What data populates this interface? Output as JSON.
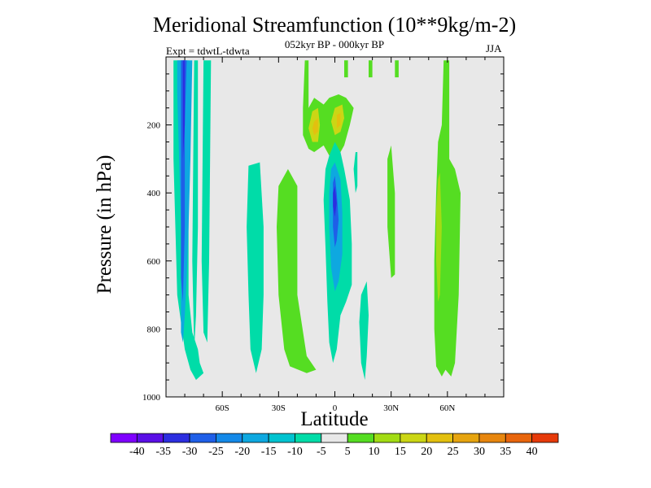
{
  "chart_data": {
    "type": "heatmap",
    "title": "Meridional Streamfunction (10**9kg/m-2)",
    "subtitle": "052kyr BP - 000kyr BP",
    "experiment_label": "Expt = tdwtL-tdwta",
    "season": "JJA",
    "xlabel": "Latitude",
    "ylabel": "Pressure (in hPa)",
    "xlim": [
      -90,
      90
    ],
    "ylim": [
      1000,
      0
    ],
    "x_ticks": [
      -60,
      -30,
      0,
      30,
      60
    ],
    "x_tick_labels": [
      "60S",
      "30S",
      "0",
      "30N",
      "60N"
    ],
    "y_ticks": [
      200,
      400,
      600,
      800,
      1000
    ],
    "y_tick_labels": [
      "200",
      "400",
      "600",
      "800",
      "1000"
    ],
    "colorbar_levels": [
      -40,
      -35,
      -30,
      -25,
      -20,
      -15,
      -10,
      -5,
      5,
      10,
      15,
      20,
      25,
      30,
      35,
      40
    ],
    "colorbar_labels": [
      "-40",
      "-35",
      "-30",
      "-25",
      "-20",
      "-15",
      "-10",
      "-5",
      "5",
      "10",
      "15",
      "20",
      "25",
      "30",
      "35",
      "40"
    ],
    "colorbar_colors": [
      "#7f00ff",
      "#5a0fe6",
      "#2c2ee0",
      "#1f5fe8",
      "#1489e8",
      "#0ea8e0",
      "#00c3d0",
      "#00dca8",
      "#e8e8e8",
      "#55dd22",
      "#a2dc14",
      "#cbd615",
      "#e3c00f",
      "#e6a40f",
      "#e7860e",
      "#e8650c",
      "#e63a0a"
    ],
    "background_color": "#e8e8e8",
    "contours": [
      {
        "level": -10,
        "color": "#00dca8",
        "points": [
          [
            -86,
            10
          ],
          [
            -78,
            10
          ],
          [
            -78,
            700
          ],
          [
            -76,
            810
          ],
          [
            -73,
            860
          ],
          [
            -72,
            900
          ],
          [
            -70,
            930
          ],
          [
            -74,
            950
          ],
          [
            -77,
            920
          ],
          [
            -80,
            860
          ],
          [
            -82,
            780
          ],
          [
            -84,
            700
          ],
          [
            -85,
            500
          ],
          [
            -86,
            300
          ]
        ]
      },
      {
        "level": -20,
        "color": "#0ea8e0",
        "points": [
          [
            -84,
            10
          ],
          [
            -76,
            10
          ],
          [
            -77,
            300
          ],
          [
            -78,
            500
          ],
          [
            -79,
            650
          ],
          [
            -80,
            760
          ],
          [
            -81,
            840
          ],
          [
            -82,
            810
          ],
          [
            -82,
            700
          ],
          [
            -82,
            500
          ],
          [
            -83,
            300
          ],
          [
            -84,
            100
          ]
        ]
      },
      {
        "level": -30,
        "color": "#1f5fe8",
        "points": [
          [
            -82,
            10
          ],
          [
            -79,
            10
          ],
          [
            -80,
            200
          ],
          [
            -80,
            500
          ],
          [
            -81,
            720
          ],
          [
            -82,
            650
          ],
          [
            -82,
            400
          ],
          [
            -82,
            150
          ]
        ]
      },
      {
        "level": -35,
        "color": "#2c2ee0",
        "points": [
          [
            -81,
            10
          ],
          [
            -80,
            10
          ],
          [
            -80,
            200
          ],
          [
            -81,
            300
          ],
          [
            -81,
            200
          ]
        ]
      },
      {
        "level": -10,
        "color": "#00dca8",
        "points": [
          [
            -75,
            10
          ],
          [
            -73,
            10
          ],
          [
            -73,
            500
          ],
          [
            -74,
            760
          ],
          [
            -75,
            860
          ],
          [
            -76,
            600
          ]
        ]
      },
      {
        "level": -10,
        "color": "#00dca8",
        "points": [
          [
            -70,
            10
          ],
          [
            -66,
            10
          ],
          [
            -67,
            600
          ],
          [
            -68,
            840
          ],
          [
            -70,
            810
          ],
          [
            -71,
            600
          ]
        ]
      },
      {
        "level": -10,
        "color": "#00dca8",
        "points": [
          [
            -46,
            320
          ],
          [
            -40,
            310
          ],
          [
            -38,
            500
          ],
          [
            -38,
            700
          ],
          [
            -39,
            860
          ],
          [
            -42,
            930
          ],
          [
            -45,
            860
          ],
          [
            -46,
            700
          ],
          [
            -47,
            500
          ]
        ]
      },
      {
        "level": 5,
        "color": "#55dd22",
        "points": [
          [
            -30,
            380
          ],
          [
            -25,
            330
          ],
          [
            -20,
            380
          ],
          [
            -20,
            700
          ],
          [
            -15,
            880
          ],
          [
            -10,
            920
          ],
          [
            -15,
            930
          ],
          [
            -24,
            910
          ],
          [
            -27,
            860
          ],
          [
            -30,
            700
          ],
          [
            -31,
            500
          ]
        ]
      },
      {
        "level": 5,
        "color": "#55dd22",
        "points": [
          [
            -16,
            10
          ],
          [
            -14,
            10
          ],
          [
            -14,
            150
          ],
          [
            -11,
            120
          ],
          [
            -6,
            140
          ],
          [
            -3,
            120
          ],
          [
            2,
            110
          ],
          [
            6,
            120
          ],
          [
            10,
            150
          ],
          [
            8,
            200
          ],
          [
            5,
            260
          ],
          [
            1,
            300
          ],
          [
            -3,
            290
          ],
          [
            -6,
            260
          ],
          [
            -11,
            280
          ],
          [
            -14,
            270
          ],
          [
            -17,
            230
          ],
          [
            -17,
            150
          ]
        ]
      },
      {
        "level": 15,
        "color": "#cbd615",
        "points": [
          [
            -12,
            160
          ],
          [
            -9,
            150
          ],
          [
            -8,
            200
          ],
          [
            -9,
            250
          ],
          [
            -12,
            250
          ],
          [
            -14,
            210
          ]
        ]
      },
      {
        "level": 20,
        "color": "#e3c00f",
        "points": [
          [
            -11,
            190
          ],
          [
            -9,
            180
          ],
          [
            -9,
            220
          ],
          [
            -11,
            230
          ],
          [
            -12,
            210
          ]
        ]
      },
      {
        "level": 15,
        "color": "#cbd615",
        "points": [
          [
            0,
            150
          ],
          [
            4,
            140
          ],
          [
            5,
            180
          ],
          [
            3,
            220
          ],
          [
            0,
            230
          ],
          [
            -2,
            190
          ]
        ]
      },
      {
        "level": 20,
        "color": "#e3c00f",
        "points": [
          [
            1,
            170
          ],
          [
            3,
            165
          ],
          [
            3,
            200
          ],
          [
            1,
            210
          ]
        ]
      },
      {
        "level": 5,
        "color": "#55dd22",
        "points": [
          [
            5,
            10
          ],
          [
            7,
            10
          ],
          [
            7,
            60
          ],
          [
            5,
            60
          ]
        ]
      },
      {
        "level": -10,
        "color": "#00dca8",
        "points": [
          [
            -3,
            290
          ],
          [
            0,
            250
          ],
          [
            3,
            280
          ],
          [
            5,
            330
          ],
          [
            8,
            420
          ],
          [
            9,
            550
          ],
          [
            9,
            670
          ],
          [
            6,
            720
          ],
          [
            3,
            760
          ],
          [
            1,
            860
          ],
          [
            -1,
            900
          ],
          [
            -3,
            840
          ],
          [
            -4,
            720
          ],
          [
            -5,
            560
          ],
          [
            -6,
            420
          ],
          [
            -5,
            330
          ]
        ]
      },
      {
        "level": -20,
        "color": "#0ea8e0",
        "points": [
          [
            -2,
            330
          ],
          [
            0,
            310
          ],
          [
            3,
            360
          ],
          [
            4,
            460
          ],
          [
            4,
            580
          ],
          [
            2,
            660
          ],
          [
            0,
            690
          ],
          [
            -2,
            620
          ],
          [
            -3,
            500
          ],
          [
            -3,
            400
          ]
        ]
      },
      {
        "level": -30,
        "color": "#1f5fe8",
        "points": [
          [
            -1,
            370
          ],
          [
            0,
            350
          ],
          [
            1,
            400
          ],
          [
            2,
            480
          ],
          [
            1,
            540
          ],
          [
            0,
            560
          ],
          [
            -1,
            500
          ],
          [
            -1,
            420
          ]
        ]
      },
      {
        "level": -35,
        "color": "#2c2ee0",
        "points": [
          [
            -1,
            400
          ],
          [
            0,
            380
          ],
          [
            1,
            430
          ],
          [
            0,
            470
          ],
          [
            -1,
            440
          ]
        ]
      },
      {
        "level": -10,
        "color": "#00dca8",
        "points": [
          [
            11,
            280
          ],
          [
            12,
            280
          ],
          [
            12,
            380
          ],
          [
            11,
            400
          ],
          [
            10,
            330
          ]
        ]
      },
      {
        "level": -10,
        "color": "#00dca8",
        "points": [
          [
            14,
            700
          ],
          [
            17,
            660
          ],
          [
            18,
            760
          ],
          [
            17,
            880
          ],
          [
            16,
            950
          ],
          [
            14,
            900
          ],
          [
            13,
            780
          ]
        ]
      },
      {
        "level": 5,
        "color": "#55dd22",
        "points": [
          [
            18,
            10
          ],
          [
            20,
            10
          ],
          [
            20,
            60
          ],
          [
            18,
            60
          ]
        ]
      },
      {
        "level": 5,
        "color": "#55dd22",
        "points": [
          [
            28,
            300
          ],
          [
            30,
            260
          ],
          [
            32,
            400
          ],
          [
            32,
            640
          ],
          [
            30,
            650
          ],
          [
            28,
            500
          ]
        ]
      },
      {
        "level": 5,
        "color": "#55dd22",
        "points": [
          [
            32,
            10
          ],
          [
            34,
            10
          ],
          [
            34,
            60
          ],
          [
            32,
            60
          ]
        ]
      },
      {
        "level": 5,
        "color": "#55dd22",
        "points": [
          [
            58,
            10
          ],
          [
            61,
            10
          ],
          [
            61,
            300
          ],
          [
            64,
            330
          ],
          [
            67,
            400
          ],
          [
            66,
            700
          ],
          [
            64,
            900
          ],
          [
            62,
            940
          ],
          [
            59,
            920
          ],
          [
            57,
            940
          ],
          [
            54,
            910
          ],
          [
            53,
            800
          ],
          [
            53,
            600
          ],
          [
            54,
            400
          ],
          [
            55,
            250
          ],
          [
            57,
            200
          ]
        ]
      },
      {
        "level": 10,
        "color": "#a2dc14",
        "points": [
          [
            55,
            360
          ],
          [
            56,
            340
          ],
          [
            57,
            500
          ],
          [
            56,
            700
          ],
          [
            55,
            720
          ],
          [
            54,
            600
          ],
          [
            54,
            450
          ]
        ]
      }
    ]
  }
}
